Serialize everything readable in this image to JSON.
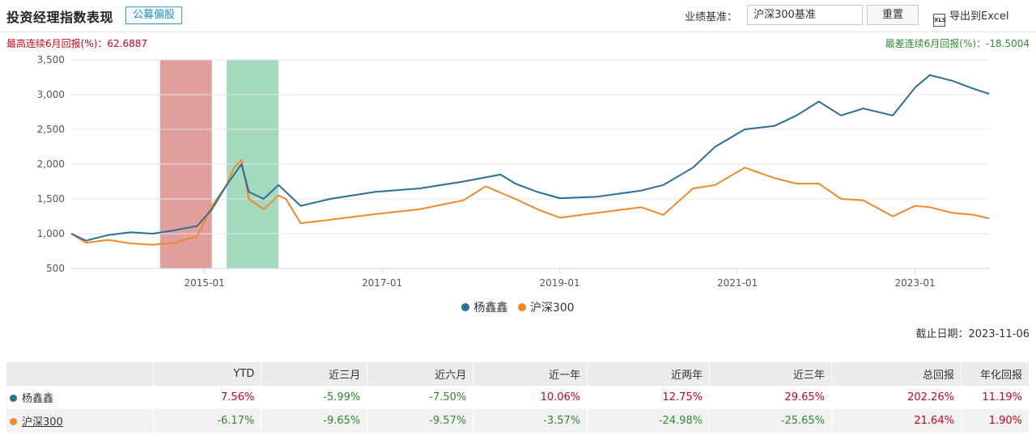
{
  "header": {
    "title": "投资经理指数表现",
    "tag": "公募偏股",
    "benchmark_label": "业绩基准：",
    "benchmark_value": "沪深300基准",
    "reset_label": "重置",
    "export_label": "导出到Excel",
    "export_icon": "xls-file-icon"
  },
  "stats": {
    "max_return": "最高连续6月回报(%)：62.6887",
    "min_return": "最差连续6月回报(%)：-18.5004"
  },
  "legend": [
    {
      "name": "杨鑫鑫",
      "color": "#2b6f94"
    },
    {
      "name": "沪深300",
      "color": "#f0892a"
    }
  ],
  "as_of": "截止日期：2023-11-06",
  "table": {
    "headers": [
      "",
      "YTD",
      "近三月",
      "近六月",
      "近一年",
      "近两年",
      "近三年",
      "总回报",
      "年化回报"
    ],
    "rows": [
      {
        "name": "杨鑫鑫",
        "color": "#2b6f94",
        "values": [
          "7.56%",
          "-5.99%",
          "-7.50%",
          "10.06%",
          "12.75%",
          "29.65%",
          "202.26%",
          "11.19%"
        ]
      },
      {
        "name": "沪深300",
        "color": "#f0892a",
        "values": [
          "-6.17%",
          "-9.65%",
          "-9.57%",
          "-3.57%",
          "-24.98%",
          "-25.65%",
          "21.64%",
          "1.90%"
        ]
      }
    ]
  },
  "chart_data": {
    "type": "line",
    "xlabel": "",
    "ylabel": "",
    "ylim": [
      500,
      3500
    ],
    "yticks": [
      500,
      1000,
      1500,
      2000,
      2500,
      3000,
      3500
    ],
    "ytick_labels": [
      "500",
      "1,000",
      "1,500",
      "2,000",
      "2,500",
      "3,000",
      "3,500"
    ],
    "xrange": [
      "2013-07",
      "2023-11"
    ],
    "xticks": [
      "2015-01",
      "2017-01",
      "2019-01",
      "2021-01",
      "2023-01"
    ],
    "grid": true,
    "highlight_bands": [
      {
        "start": "2014-07",
        "end": "2015-02",
        "color": "#d98a88",
        "meaning": "最高连续6月回报"
      },
      {
        "start": "2015-04",
        "end": "2015-11",
        "color": "#8fd1b0",
        "meaning": "最差连续6月回报"
      }
    ],
    "series": [
      {
        "name": "杨鑫鑫",
        "color": "#2b6f94",
        "points": [
          [
            "2013-07",
            1000
          ],
          [
            "2013-09",
            900
          ],
          [
            "2013-12",
            980
          ],
          [
            "2014-03",
            1020
          ],
          [
            "2014-06",
            1000
          ],
          [
            "2014-09",
            1050
          ],
          [
            "2014-12",
            1110
          ],
          [
            "2015-02",
            1350
          ],
          [
            "2015-04",
            1700
          ],
          [
            "2015-05",
            1850
          ],
          [
            "2015-06",
            2000
          ],
          [
            "2015-07",
            1600
          ],
          [
            "2015-09",
            1500
          ],
          [
            "2015-11",
            1700
          ],
          [
            "2015-12",
            1600
          ],
          [
            "2016-02",
            1400
          ],
          [
            "2016-06",
            1500
          ],
          [
            "2016-12",
            1600
          ],
          [
            "2017-06",
            1650
          ],
          [
            "2017-12",
            1750
          ],
          [
            "2018-05",
            1850
          ],
          [
            "2018-07",
            1720
          ],
          [
            "2018-10",
            1600
          ],
          [
            "2019-01",
            1510
          ],
          [
            "2019-06",
            1530
          ],
          [
            "2019-12",
            1620
          ],
          [
            "2020-03",
            1700
          ],
          [
            "2020-07",
            1950
          ],
          [
            "2020-10",
            2250
          ],
          [
            "2021-02",
            2500
          ],
          [
            "2021-06",
            2550
          ],
          [
            "2021-09",
            2700
          ],
          [
            "2021-12",
            2900
          ],
          [
            "2022-03",
            2700
          ],
          [
            "2022-06",
            2800
          ],
          [
            "2022-10",
            2700
          ],
          [
            "2023-01",
            3100
          ],
          [
            "2023-03",
            3280
          ],
          [
            "2023-06",
            3200
          ],
          [
            "2023-09",
            3080
          ],
          [
            "2023-11",
            3010
          ]
        ]
      },
      {
        "name": "沪深300",
        "color": "#f0892a",
        "points": [
          [
            "2013-07",
            1000
          ],
          [
            "2013-09",
            870
          ],
          [
            "2013-12",
            910
          ],
          [
            "2014-03",
            860
          ],
          [
            "2014-06",
            840
          ],
          [
            "2014-09",
            870
          ],
          [
            "2014-12",
            960
          ],
          [
            "2015-02",
            1400
          ],
          [
            "2015-04",
            1700
          ],
          [
            "2015-05",
            1950
          ],
          [
            "2015-06",
            2060
          ],
          [
            "2015-07",
            1500
          ],
          [
            "2015-09",
            1350
          ],
          [
            "2015-11",
            1550
          ],
          [
            "2015-12",
            1500
          ],
          [
            "2016-02",
            1150
          ],
          [
            "2016-06",
            1200
          ],
          [
            "2016-12",
            1280
          ],
          [
            "2017-06",
            1350
          ],
          [
            "2017-12",
            1480
          ],
          [
            "2018-03",
            1680
          ],
          [
            "2018-07",
            1500
          ],
          [
            "2018-10",
            1350
          ],
          [
            "2019-01",
            1230
          ],
          [
            "2019-06",
            1300
          ],
          [
            "2019-12",
            1380
          ],
          [
            "2020-03",
            1270
          ],
          [
            "2020-07",
            1650
          ],
          [
            "2020-10",
            1700
          ],
          [
            "2021-02",
            1950
          ],
          [
            "2021-06",
            1800
          ],
          [
            "2021-09",
            1720
          ],
          [
            "2021-12",
            1720
          ],
          [
            "2022-03",
            1500
          ],
          [
            "2022-06",
            1480
          ],
          [
            "2022-10",
            1250
          ],
          [
            "2023-01",
            1400
          ],
          [
            "2023-03",
            1380
          ],
          [
            "2023-06",
            1300
          ],
          [
            "2023-09",
            1270
          ],
          [
            "2023-11",
            1220
          ]
        ]
      }
    ]
  }
}
